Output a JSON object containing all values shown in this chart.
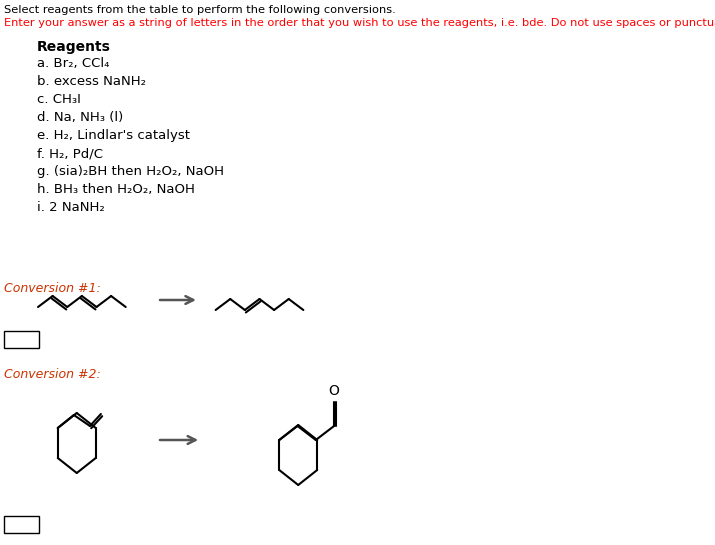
{
  "title_line1": "Select reagents from the table to perform the following conversions.",
  "title_line2": "Enter your answer as a string of letters in the order that you wish to use the reagents, i.e. bde. Do not use spaces or punctuation.",
  "title_line1_color": "#000000",
  "title_line2_color": "#ff0000",
  "reagents_title": "Reagents",
  "reagents": [
    "a. Br₂, CCl₄",
    "b. excess NaNH₂",
    "c. CH₃I",
    "d. Na, NH₃ (l)",
    "e. H₂, Lindlar's catalyst",
    "f. H₂, Pd/C",
    "g. (sia)₂BH then H₂O₂, NaOH",
    "h. BH₃ then H₂O₂, NaOH",
    "i. 2 NaNH₂"
  ],
  "conversion1_label": "Conversion #1:",
  "conversion2_label": "Conversion #2:",
  "background_color": "#ffffff"
}
